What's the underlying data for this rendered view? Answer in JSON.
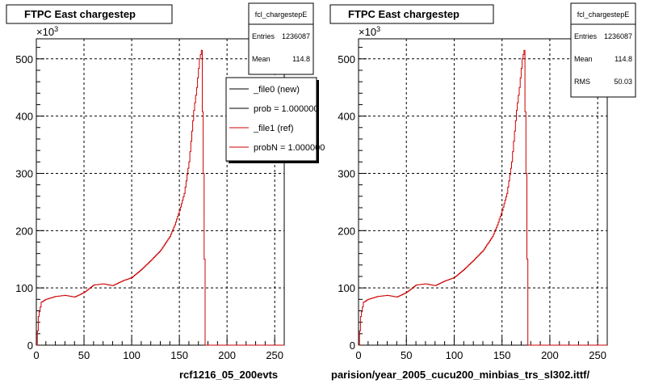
{
  "footer": {
    "left_path": "rcf1216_05_200evts",
    "right_path": "parision/year_2005_cucu200_minbias_trs_sl302.ittf/",
    "corner_text": ""
  },
  "chart_data": [
    {
      "type": "line",
      "title": "FTPC East chargestep",
      "y_exponent_label": "×10",
      "y_exponent_sup": "3",
      "xlim": [
        0,
        260
      ],
      "ylim": [
        0,
        535
      ],
      "x_ticks": [
        0,
        50,
        100,
        150,
        200,
        250
      ],
      "y_ticks": [
        0,
        100,
        200,
        300,
        400,
        500
      ],
      "grid": true,
      "stats": {
        "name": "fcl_chargestepE",
        "entries_label": "Entries",
        "entries": "1236087",
        "mean_label": "Mean",
        "mean": "114.8"
      },
      "legend": {
        "placement": "top-right",
        "entries": [
          {
            "label": "_file0 (new)",
            "color": "#000000"
          },
          {
            "label": "prob = 1.000000",
            "color": "#000000"
          },
          {
            "label": "_file1 (ref)",
            "color": "#cc0000"
          },
          {
            "label": "probN = 1.000000",
            "color": "#cc0000"
          }
        ]
      },
      "series": [
        {
          "color": "#cc0000",
          "x": [
            0,
            2,
            5,
            10,
            20,
            30,
            40,
            50,
            60,
            70,
            80,
            90,
            100,
            110,
            120,
            130,
            140,
            145,
            150,
            155,
            160,
            165,
            168,
            171,
            173,
            175,
            177,
            180,
            260
          ],
          "y": [
            0,
            50,
            75,
            80,
            85,
            87,
            84,
            92,
            105,
            107,
            104,
            112,
            118,
            132,
            148,
            165,
            190,
            210,
            235,
            265,
            320,
            410,
            450,
            500,
            515,
            300,
            0,
            0,
            0
          ]
        }
      ]
    },
    {
      "type": "line",
      "title": "FTPC East chargestep",
      "y_exponent_label": "×10",
      "y_exponent_sup": "3",
      "xlim": [
        0,
        260
      ],
      "ylim": [
        0,
        535
      ],
      "x_ticks": [
        0,
        50,
        100,
        150,
        200,
        250
      ],
      "y_ticks": [
        0,
        100,
        200,
        300,
        400,
        500
      ],
      "grid": true,
      "stats": {
        "name": "fcl_chargestepE",
        "entries_label": "Entries",
        "entries": "1236087",
        "mean_label": "Mean",
        "mean": "114.8",
        "rms_label": "RMS",
        "rms": "50.03"
      },
      "series": [
        {
          "color": "#cc0000",
          "x": [
            0,
            2,
            5,
            10,
            20,
            30,
            40,
            50,
            60,
            70,
            80,
            90,
            100,
            110,
            120,
            130,
            140,
            145,
            150,
            155,
            160,
            165,
            168,
            171,
            173,
            175,
            177,
            180,
            260
          ],
          "y": [
            0,
            50,
            75,
            80,
            85,
            87,
            84,
            92,
            105,
            107,
            104,
            112,
            118,
            132,
            148,
            165,
            190,
            210,
            235,
            265,
            320,
            410,
            450,
            500,
            515,
            300,
            0,
            0,
            0
          ]
        }
      ]
    }
  ]
}
